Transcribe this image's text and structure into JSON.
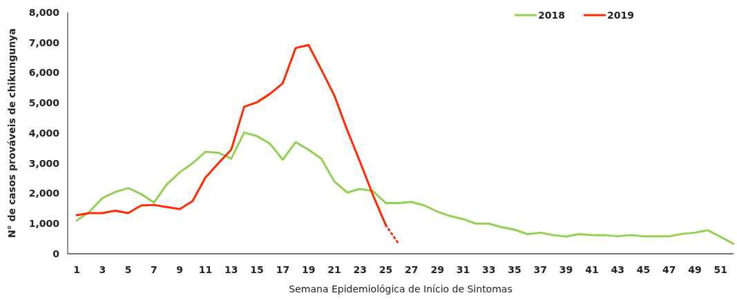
{
  "chart_data": {
    "type": "line",
    "xlabel": "Semana Epidemiológica de Início de Sintomas",
    "ylabel": "N° de casos prováveis de chikungunya",
    "x": [
      1,
      2,
      3,
      4,
      5,
      6,
      7,
      8,
      9,
      10,
      11,
      12,
      13,
      14,
      15,
      16,
      17,
      18,
      19,
      20,
      21,
      22,
      23,
      24,
      25,
      26,
      27,
      28,
      29,
      30,
      31,
      32,
      33,
      34,
      35,
      36,
      37,
      38,
      39,
      40,
      41,
      42,
      43,
      44,
      45,
      46,
      47,
      48,
      49,
      50,
      51,
      52
    ],
    "xlim": [
      0.3,
      52
    ],
    "xticks": [
      1,
      3,
      5,
      7,
      9,
      11,
      13,
      15,
      17,
      19,
      21,
      23,
      25,
      27,
      29,
      31,
      33,
      35,
      37,
      39,
      41,
      43,
      45,
      47,
      49,
      51
    ],
    "ylim": [
      0,
      8000
    ],
    "yticks": [
      0,
      {
        "value": 1000,
        "label": "1,000"
      },
      {
        "value": 2000,
        "label": "2,000"
      },
      {
        "value": 3000,
        "label": "3,000"
      },
      {
        "value": 4000,
        "label": "4,000"
      },
      {
        "value": 5000,
        "label": "5,000"
      },
      {
        "value": 6000,
        "label": "6,000"
      },
      {
        "value": 7000,
        "label": "7,000"
      },
      {
        "value": 8000,
        "label": "8,000"
      }
    ],
    "grid": false,
    "legend": "top right",
    "marker": "none",
    "series": [
      {
        "name": "2018",
        "color": "#92d050",
        "line_style": "solid",
        "values": [
          1100,
          1400,
          1850,
          2050,
          2180,
          1980,
          1700,
          2300,
          2700,
          3000,
          3380,
          3350,
          3150,
          4020,
          3900,
          3650,
          3120,
          3700,
          3450,
          3150,
          2400,
          2030,
          2150,
          2080,
          1680,
          1680,
          1720,
          1600,
          1400,
          1250,
          1150,
          1000,
          1000,
          880,
          800,
          650,
          700,
          620,
          570,
          650,
          620,
          620,
          580,
          620,
          580,
          580,
          580,
          660,
          700,
          780,
          560,
          330
        ]
      },
      {
        "name": "2019",
        "color": "#ff2a00",
        "line_style": "solid",
        "x": [
          1,
          2,
          3,
          4,
          5,
          6,
          7,
          8,
          9,
          10,
          11,
          12,
          13,
          14,
          15,
          16,
          17,
          18,
          19,
          20,
          21,
          22,
          23,
          24,
          25
        ],
        "values": [
          1280,
          1350,
          1350,
          1430,
          1350,
          1600,
          1620,
          1550,
          1480,
          1750,
          2530,
          3000,
          3450,
          4870,
          5020,
          5300,
          5650,
          6820,
          6920,
          6100,
          5250,
          4100,
          3050,
          1950,
          950
        ]
      },
      {
        "color": "#ff2a00",
        "line_style": "dotted",
        "x": [
          25,
          26
        ],
        "values": [
          950,
          330
        ]
      }
    ]
  }
}
